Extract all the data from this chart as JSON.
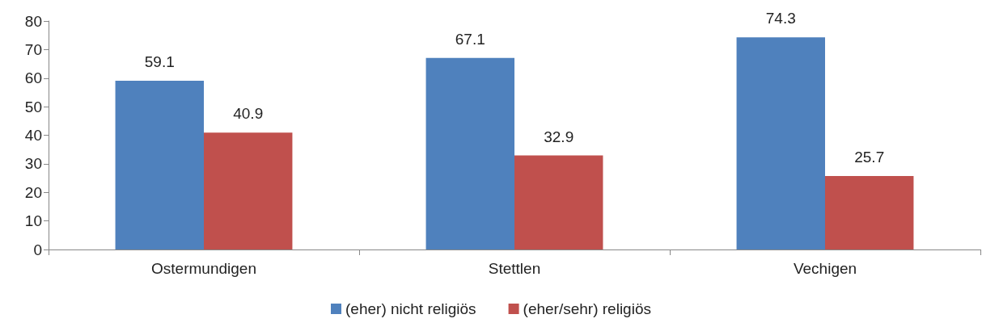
{
  "chart_data": {
    "type": "bar",
    "categories": [
      "Ostermundigen",
      "Stettlen",
      "Vechigen"
    ],
    "series": [
      {
        "name": "(eher) nicht religiös",
        "color": "#4f81bd",
        "values": [
          59.1,
          67.1,
          74.3
        ]
      },
      {
        "name": "(eher/sehr) religiös",
        "color": "#c0504d",
        "values": [
          40.9,
          32.9,
          25.7
        ]
      }
    ],
    "ylim": [
      0,
      80
    ],
    "yticks": [
      0,
      10,
      20,
      30,
      40,
      50,
      60,
      70,
      80
    ],
    "grid": false,
    "legend": "bottom",
    "data_labels": true
  }
}
